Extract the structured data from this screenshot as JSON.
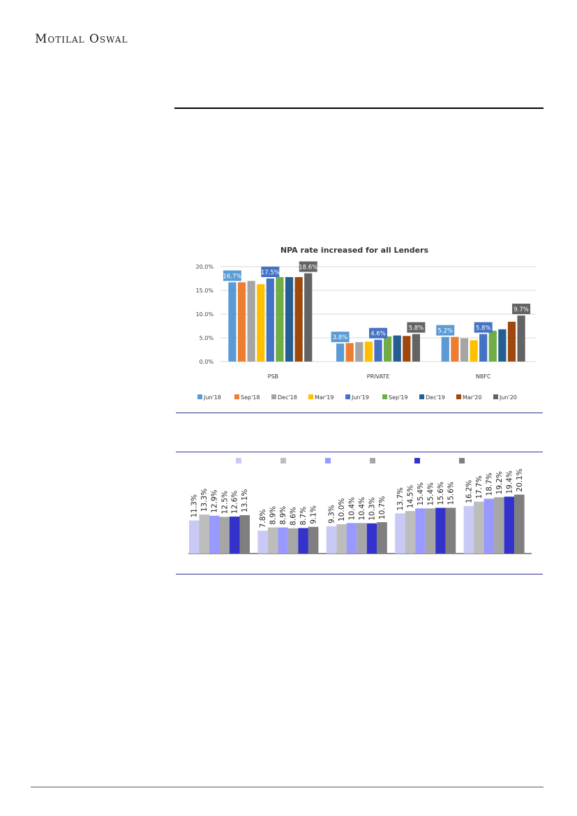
{
  "header": {
    "brand": "Motilal Oswal"
  },
  "colors": {
    "jun18": "#5b9bd5",
    "sep18": "#ed7d31",
    "dec18": "#a5a5a5",
    "mar19": "#ffc000",
    "jun19": "#4472c4",
    "sep19": "#70ad47",
    "dec19": "#255e91",
    "mar20": "#9e480e",
    "jun20": "#636363",
    "divider": "#2e3192"
  },
  "chart_data": [
    {
      "type": "bar",
      "title": "NPA rate increased for all Lenders",
      "categories": [
        "PSB",
        "PRIVATE",
        "NBFC"
      ],
      "ylim": [
        0,
        20
      ],
      "yticks": [
        "0.0%",
        "5.0%",
        "10.0%",
        "15.0%",
        "20.0%"
      ],
      "legend_position": "bottom",
      "series": [
        {
          "name": "Jun'18",
          "values": [
            16.7,
            3.8,
            5.2
          ]
        },
        {
          "name": "Sep'18",
          "values": [
            16.7,
            3.9,
            5.2
          ]
        },
        {
          "name": "Dec'18",
          "values": [
            17.0,
            4.1,
            4.9
          ]
        },
        {
          "name": "Mar'19",
          "values": [
            16.3,
            4.2,
            4.5
          ]
        },
        {
          "name": "Jun'19",
          "values": [
            17.5,
            4.6,
            5.8
          ]
        },
        {
          "name": "Sep'19",
          "values": [
            17.8,
            5.3,
            6.5
          ]
        },
        {
          "name": "Dec'19",
          "values": [
            17.8,
            5.5,
            6.8
          ]
        },
        {
          "name": "Mar'20",
          "values": [
            17.8,
            5.4,
            8.4
          ]
        },
        {
          "name": "Jun'20",
          "values": [
            18.6,
            5.8,
            9.7
          ]
        }
      ],
      "data_labels": [
        {
          "category": 0,
          "series": 0,
          "text": "16.7%"
        },
        {
          "category": 0,
          "series": 4,
          "text": "17.5%"
        },
        {
          "category": 0,
          "series": 8,
          "text": "18.6%"
        },
        {
          "category": 1,
          "series": 0,
          "text": "3.8%"
        },
        {
          "category": 1,
          "series": 4,
          "text": "4.6%"
        },
        {
          "category": 1,
          "series": 8,
          "text": "5.8%"
        },
        {
          "category": 2,
          "series": 0,
          "text": "5.2%"
        },
        {
          "category": 2,
          "series": 4,
          "text": "5.8%"
        },
        {
          "category": 2,
          "series": 8,
          "text": "9.7%"
        }
      ]
    },
    {
      "type": "bar",
      "title": "",
      "group_count": 5,
      "series_colors": [
        "#c9c9f5",
        "#bdbdbd",
        "#9999ff",
        "#a6a6a6",
        "#3333cc",
        "#7f7f7f"
      ],
      "groups": [
        {
          "values": [
            11.3,
            13.3,
            12.9,
            12.5,
            12.6,
            13.1
          ],
          "labels": [
            "11.3%",
            "13.3%",
            "12.9%",
            "12.5%",
            "12.6%",
            "13.1%"
          ]
        },
        {
          "values": [
            7.8,
            8.9,
            8.9,
            8.6,
            8.7,
            9.1
          ],
          "labels": [
            "7.8%",
            "8.9%",
            "8.9%",
            "8.6%",
            "8.7%",
            "9.1%"
          ]
        },
        {
          "values": [
            9.3,
            10.0,
            10.4,
            10.4,
            10.3,
            10.7
          ],
          "labels": [
            "9.3%",
            "10.0%",
            "10.4%",
            "10.4%",
            "10.3%",
            "10.7%"
          ]
        },
        {
          "values": [
            13.7,
            14.5,
            15.4,
            15.4,
            15.6,
            15.6
          ],
          "labels": [
            "13.7%",
            "14.5%",
            "15.4%",
            "15.4%",
            "15.6%",
            "15.6%"
          ]
        },
        {
          "values": [
            16.2,
            17.7,
            18.7,
            19.2,
            19.4,
            20.1
          ],
          "labels": [
            "16.2%",
            "17.7%",
            "18.7%",
            "19.2%",
            "19.4%",
            "20.1%"
          ]
        }
      ]
    }
  ]
}
